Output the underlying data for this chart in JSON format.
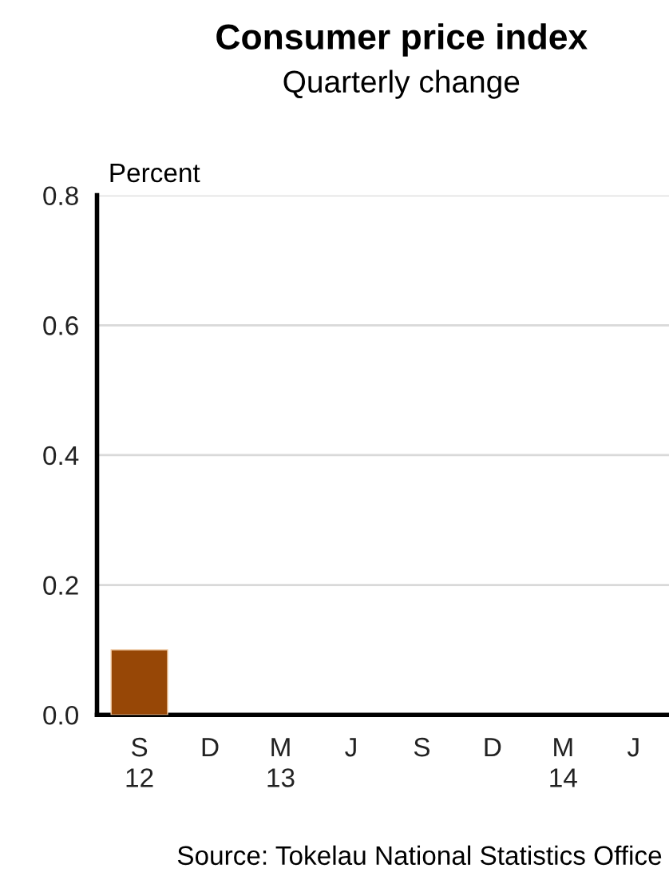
{
  "chart_data": {
    "type": "bar",
    "title": "Consumer price index",
    "subtitle": "Quarterly change",
    "ylabel": "Percent",
    "categories": [
      "S\n12",
      "D",
      "M\n13",
      "J",
      "S",
      "D",
      "M\n14",
      "J"
    ],
    "values": [
      0.1,
      null,
      null,
      null,
      null,
      null,
      null,
      null
    ],
    "color": "#974706",
    "ylim": [
      0,
      0.8
    ],
    "yticks": [
      {
        "value": 0,
        "label": "0.0"
      },
      {
        "value": 0.2,
        "label": "0.2"
      },
      {
        "value": 0.4,
        "label": "0.4"
      },
      {
        "value": 0.6,
        "label": "0.6"
      },
      {
        "value": 0.8,
        "label": "0.8"
      }
    ],
    "grid": "y",
    "legend": false,
    "annotations": [
      "Source: Tokelau National Statistics Office"
    ]
  }
}
